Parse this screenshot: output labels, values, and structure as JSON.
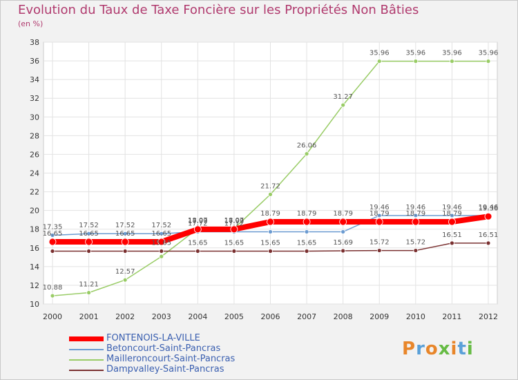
{
  "chart_data": {
    "type": "line",
    "title": "Evolution du Taux de Taxe Foncière sur les Propriétés Non Bâties",
    "subtitle": "(en %)",
    "x": [
      "2000",
      "2001",
      "2002",
      "2003",
      "2004",
      "2005",
      "2006",
      "2007",
      "2008",
      "2009",
      "2010",
      "2011",
      "2012"
    ],
    "ylim": [
      10,
      38
    ],
    "yticks": [
      10,
      12,
      14,
      16,
      18,
      20,
      22,
      24,
      26,
      28,
      30,
      32,
      34,
      36,
      38
    ],
    "grid": true,
    "legend_position": "bottom-left",
    "series": [
      {
        "name": "FONTENOIS-LA-VILLE",
        "color": "#ff0000",
        "values": [
          16.65,
          16.65,
          16.65,
          16.65,
          17.99,
          17.99,
          18.79,
          18.79,
          18.79,
          18.79,
          18.79,
          18.79,
          19.36
        ]
      },
      {
        "name": "Betoncourt-Saint-Pancras",
        "color": "#6b9bd1",
        "values": [
          17.35,
          17.52,
          17.52,
          17.52,
          17.72,
          17.72,
          17.72,
          17.72,
          17.72,
          19.46,
          19.46,
          19.46,
          19.46
        ]
      },
      {
        "name": "Mailleroncourt-Saint-Pancras",
        "color": "#99cc66",
        "values": [
          10.88,
          11.21,
          12.57,
          15.08,
          18.07,
          18.07,
          21.72,
          26.06,
          31.27,
          35.96,
          35.96,
          35.96,
          35.96
        ]
      },
      {
        "name": "Dampvalley-Saint-Pancras",
        "color": "#7a3030",
        "values": [
          15.65,
          15.65,
          15.65,
          15.65,
          15.65,
          15.65,
          15.65,
          15.65,
          15.69,
          15.72,
          15.72,
          16.51,
          16.51
        ]
      }
    ],
    "data_labels": [
      {
        "series": 0,
        "text": [
          "16.65",
          "16.65",
          "16.65",
          "16.65",
          "17.99",
          "17.99",
          "18.79",
          "18.79",
          "18.79",
          "18.79",
          "18.79",
          "18.79",
          "19.36"
        ]
      },
      {
        "series": 1,
        "text": [
          "17.35",
          "17.52",
          "17.52",
          "17.52",
          "17.72",
          "17.72",
          "",
          "",
          "",
          "19.46",
          "19.46",
          "19.46",
          "19.46"
        ]
      },
      {
        "series": 2,
        "text": [
          "10.88",
          "11.21",
          "12.57",
          "",
          "18.07",
          "18.07",
          "21.72",
          "26.06",
          "31.27",
          "35.96",
          "35.96",
          "35.96",
          "35.96"
        ]
      },
      {
        "series": 3,
        "text": [
          "",
          "",
          "",
          "15.65",
          "15.65",
          "15.65",
          "15.65",
          "15.65",
          "15.69",
          "15.72",
          "15.72",
          "16.51",
          "16.51"
        ]
      }
    ]
  },
  "logo": {
    "text": "Proxiti",
    "colors": [
      "#e8862a",
      "#5aa0d8",
      "#e8862a",
      "#66bb44",
      "#e8862a",
      "#5aa0d8",
      "#66bb44"
    ]
  }
}
